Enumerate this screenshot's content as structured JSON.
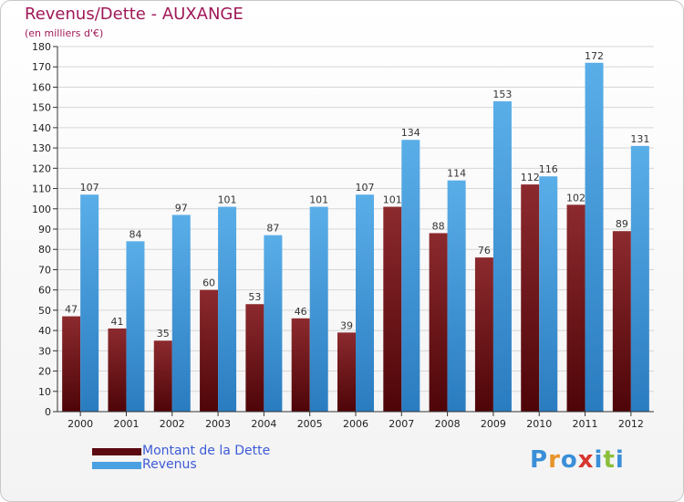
{
  "header": {
    "title": "Revenus/Dette - AUXANGE",
    "subtitle": "(en milliers d'€)"
  },
  "chart_data": {
    "type": "bar",
    "categories": [
      "2000",
      "2001",
      "2002",
      "2003",
      "2004",
      "2005",
      "2006",
      "2007",
      "2008",
      "2009",
      "2010",
      "2011",
      "2012"
    ],
    "series": [
      {
        "name": "Montant de la Dette",
        "values": [
          47,
          41,
          35,
          60,
          53,
          46,
          39,
          101,
          88,
          76,
          112,
          102,
          89
        ],
        "color": "#7a1a1e"
      },
      {
        "name": "Revenus",
        "values": [
          107,
          84,
          97,
          101,
          87,
          101,
          107,
          134,
          114,
          153,
          116,
          172,
          131
        ],
        "color": "#4aa0e0"
      }
    ],
    "ylim": [
      0,
      180
    ],
    "yticks": [
      0,
      10,
      20,
      30,
      40,
      50,
      60,
      70,
      80,
      90,
      100,
      110,
      120,
      130,
      140,
      150,
      160,
      170,
      180
    ],
    "grid": true,
    "legend_position": "bottom-left"
  },
  "legend": {
    "items": [
      {
        "label": "Montant de la Dette",
        "color": "#5a0a10"
      },
      {
        "label": "Revenus",
        "color": "#4aa0e0"
      }
    ]
  },
  "branding": {
    "logo_letters": [
      "P",
      "r",
      "o",
      "x",
      "i",
      "t",
      "i"
    ],
    "logo_colors": [
      "#3b8fd8",
      "#e8932a",
      "#3b8fd8",
      "#d8362f",
      "#3b8fd8",
      "#8cbf3a",
      "#3b8fd8"
    ]
  }
}
